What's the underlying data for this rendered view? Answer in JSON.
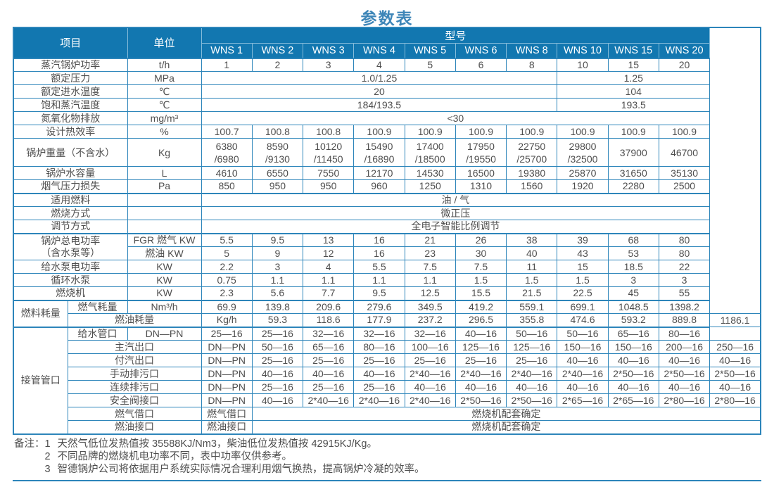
{
  "title": "参数表",
  "colors": {
    "header_bg": "#1277b0",
    "border": "#2d85ba",
    "title_text": "#3e86b8",
    "body_text": "#4e4e4e"
  },
  "table": {
    "header": {
      "item": "项目",
      "unit": "单位",
      "model_group": "型号",
      "models": [
        "WNS 1",
        "WNS 2",
        "WNS 3",
        "WNS 4",
        "WNS 5",
        "WNS 6",
        "WNS 8",
        "WNS 10",
        "WNS 15",
        "WNS 20"
      ]
    },
    "rows": [
      {
        "label": "蒸汽锅炉功率",
        "unit": "t/h",
        "cells": [
          "1",
          "2",
          "3",
          "4",
          "5",
          "6",
          "8",
          "10",
          "15",
          "20"
        ]
      },
      {
        "label": "额定压力",
        "unit": "MPa",
        "cells": [
          {
            "t": "1.0/1.25",
            "span": 7
          },
          {
            "t": "1.25",
            "span": 3
          }
        ]
      },
      {
        "label": "额定进水温度",
        "unit": "℃",
        "cells": [
          {
            "t": "20",
            "span": 7
          },
          {
            "t": "104",
            "span": 3
          }
        ]
      },
      {
        "label": "饱和蒸汽温度",
        "unit": "℃",
        "cells": [
          {
            "t": "184/193.5",
            "span": 7
          },
          {
            "t": "193.5",
            "span": 3
          }
        ]
      },
      {
        "label": "氮氧化物排放",
        "unit": "mg/m³",
        "cells": [
          {
            "t": "<30",
            "span": 10
          }
        ]
      },
      {
        "label": "设计热效率",
        "unit": "%",
        "cells": [
          "100.7",
          "100.8",
          "100.8",
          "100.9",
          "100.9",
          "100.9",
          "100.9",
          "100.9",
          "100.9",
          "100.9"
        ]
      },
      {
        "label": "锅炉重量（不含水）",
        "unit": "Kg",
        "tall": true,
        "cells": [
          {
            "t": "6380",
            "t2": "/6980"
          },
          {
            "t": "8590",
            "t2": "/9130"
          },
          {
            "t": "10120",
            "t2": "/11450"
          },
          {
            "t": "15490",
            "t2": "/16890"
          },
          {
            "t": "17400",
            "t2": "/18500"
          },
          {
            "t": "17950",
            "t2": "/19550"
          },
          {
            "t": "22750",
            "t2": "/25700"
          },
          {
            "t": "29800",
            "t2": "/32500"
          },
          "37900",
          "46700"
        ]
      },
      {
        "label": "锅炉水容量",
        "unit": "L",
        "cells": [
          "4610",
          "6550",
          "7550",
          "12170",
          "14530",
          "16500",
          "19380",
          "25870",
          "31650",
          "35130"
        ]
      },
      {
        "label": "烟气压力损失",
        "unit": "Pa",
        "cells": [
          "850",
          "950",
          "950",
          "960",
          "1250",
          "1310",
          "1560",
          "1920",
          "2280",
          "2500"
        ]
      },
      {
        "label": "适用燃料",
        "unit": "",
        "sec": true,
        "cells": [
          {
            "t": "油 / 气",
            "span": 10
          }
        ]
      },
      {
        "label": "燃烧方式",
        "unit": "",
        "cells": [
          {
            "t": "微正压",
            "span": 10
          }
        ]
      },
      {
        "label": "调节方式",
        "unit": "",
        "cells": [
          {
            "t": "全电子智能比例调节",
            "span": 10
          }
        ]
      },
      {
        "label": "锅炉总电功率",
        "label2": "（含水泵等）",
        "labelRowspan": 2,
        "sec": true,
        "unit": "FGR 燃气 KW",
        "cells": [
          "5.5",
          "9.5",
          "13",
          "16",
          "21",
          "26",
          "38",
          "39",
          "68",
          "80"
        ]
      },
      {
        "unit": "燃油 KW",
        "cells": [
          "5",
          "9",
          "12",
          "16",
          "23",
          "30",
          "40",
          "43",
          "53",
          "80"
        ]
      },
      {
        "label": "给水泵电功率",
        "unit": "KW",
        "cells": [
          "2.2",
          "3",
          "4",
          "5.5",
          "7.5",
          "7.5",
          "11",
          "15",
          "18.5",
          "22"
        ]
      },
      {
        "label": "循环水泵",
        "unit": "KW",
        "cells": [
          "0.75",
          "1.1",
          "1.1",
          "1.1",
          "1.1",
          "1.5",
          "1.5",
          "1.5",
          "3",
          "3"
        ]
      },
      {
        "label": "燃烧机",
        "unit": "KW",
        "cells": [
          "2.3",
          "5.6",
          "7.7",
          "9.5",
          "12.5",
          "15.5",
          "21.5",
          "22.5",
          "45",
          "55"
        ]
      },
      {
        "group": {
          "text": "燃料耗量",
          "rowspan": 2
        },
        "sec": true,
        "label": "燃气耗量",
        "unit": "Nm³/h",
        "cells": [
          "69.9",
          "139.8",
          "209.6",
          "279.6",
          "349.5",
          "419.2",
          "559.1",
          "699.1",
          "1048.5",
          "1398.2"
        ]
      },
      {
        "label": "燃油耗量",
        "unit": "Kg/h",
        "cells": [
          "59.3",
          "118.6",
          "177.9",
          "237.2",
          "296.5",
          "355.8",
          "474.6",
          "593.2",
          "889.8",
          "1186.1"
        ]
      },
      {
        "group": {
          "text": "接管管口",
          "rowspan": 8
        },
        "sec": true,
        "label": "给水管口",
        "unit": "DN—PN",
        "cells": [
          "25—16",
          "25—16",
          "32—16",
          "32—16",
          "32—16",
          "40—16",
          "50—16",
          "50—16",
          "65—16",
          "80—16"
        ]
      },
      {
        "label": "主汽出口",
        "unit": "DN—PN",
        "cells": [
          "50—16",
          "65—16",
          "80—16",
          "100—16",
          "125—16",
          "125—16",
          "150—16",
          "150—16",
          "200—16",
          "250—16"
        ]
      },
      {
        "label": "付汽出口",
        "unit": "DN—PN",
        "cells": [
          "25—16",
          "25—16",
          "25—16",
          "25—16",
          "25—16",
          "25—16",
          "40—16",
          "40—16",
          "40—16",
          "40—16"
        ]
      },
      {
        "label": "手动排污口",
        "unit": "DN—PN",
        "cells": [
          "40—16",
          "40—16",
          "40—16",
          "2*40—16",
          "2*40—16",
          "2*40—16",
          "2*40—16",
          "2*50—16",
          "2*50—16",
          "2*50—16"
        ]
      },
      {
        "label": "连续排污口",
        "unit": "DN—PN",
        "cells": [
          "25—16",
          "25—16",
          "25—16",
          "40—16",
          "40—16",
          "40—16",
          "40—16",
          "40—16",
          "40—16",
          "40—16"
        ]
      },
      {
        "label": "安全阀接口",
        "unit": "DN—PN",
        "cells": [
          "40—16",
          "2*40—16",
          "2*40—16",
          "2*40—16",
          "2*50—16",
          "2*50—16",
          "2*65—16",
          "2*65—16",
          "2*80—16",
          "2*80—16"
        ]
      },
      {
        "label": "燃气借口",
        "unit": "燃气借口",
        "cells": [
          {
            "t": "燃烧机配套确定",
            "span": 10
          }
        ]
      },
      {
        "label": "燃油接口",
        "unit": "燃油接口",
        "cells": [
          {
            "t": "燃烧机配套确定",
            "span": 10
          }
        ]
      }
    ]
  },
  "notes": {
    "label": "备注：",
    "items": [
      {
        "num": "1",
        "text": "天然气低位发热值按 35588KJ/Nm3，柴油低位发热值按 42915KJ/Kg。"
      },
      {
        "num": "2",
        "text": "不同品牌的燃烧机电功率不同，表中功率仅供参考。"
      },
      {
        "num": "3",
        "text": "智德锅炉公司将依据用户系统实际情况合理利用烟气换热，提高锅炉冷凝的效率。"
      }
    ]
  }
}
